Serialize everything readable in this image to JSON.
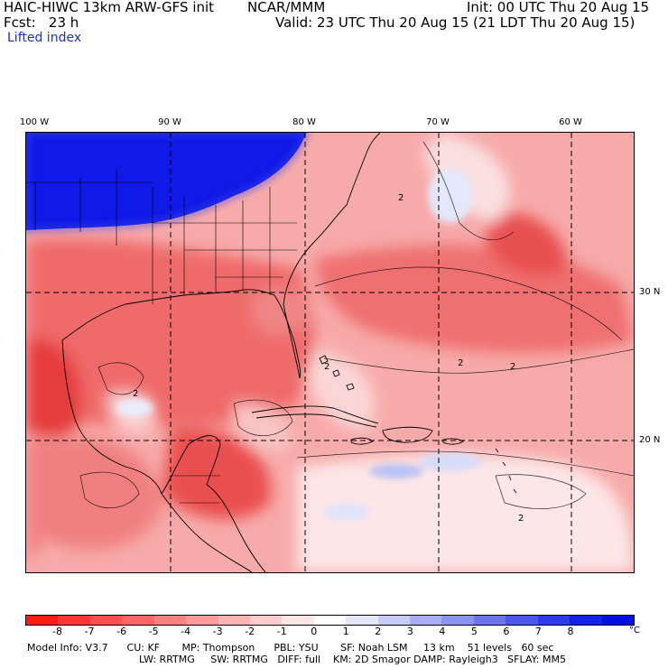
{
  "header": {
    "model": "HAIC-HIWC 13km ARW-GFS init",
    "org": "NCAR/MMM",
    "init": "Init: 00 UTC Thu 20 Aug 15",
    "fcst": "Fcst:   23 h",
    "valid": "Valid: 23 UTC Thu 20 Aug 15 (21 LDT Thu 20 Aug 15)",
    "field": "Lifted index"
  },
  "map": {
    "longitude_labels": [
      "100 W",
      "90 W",
      "80 W",
      "70 W",
      "60 W"
    ],
    "latitude_labels": [
      "30 N",
      "20 N"
    ],
    "contour_labels": [
      "2",
      "2",
      "2",
      "2",
      "2",
      "2"
    ],
    "colors": {
      "deep_blue": "#0a14e6",
      "light_blue": "#dde3fb",
      "pale": "#fbe4e4",
      "light_red": "#f7b0b0",
      "mid_red": "#f27474",
      "strong_red": "#ea4a4a"
    }
  },
  "colorbar": {
    "colors": [
      "#ff1a1a",
      "#ff3434",
      "#ff4e4e",
      "#ff6767",
      "#ff8181",
      "#ff9b9b",
      "#ffb4b4",
      "#ffcdcd",
      "#ffe6e6",
      "#ffffff",
      "#e4e6fd",
      "#c8ccfa",
      "#a9aef7",
      "#8b92f3",
      "#6c74ef",
      "#4e57ec",
      "#2f3aea",
      "#1421e8",
      "#0010e0"
    ],
    "tick_labels": [
      "-8",
      "-7",
      "-6",
      "-5",
      "-4",
      "-3",
      "-2",
      "-1",
      "0",
      "1",
      "2",
      "3",
      "4",
      "5",
      "6",
      "7",
      "8"
    ],
    "unit": "°C"
  },
  "footer": {
    "line1": "Model Info: V3.7      CU: KF       MP: Thompson      PBL: YSU       SF: Noah LSM     13 km    51 levels   60 sec",
    "line2": "LW: RRTMG     SW: RRTMG   DIFF: full    KM: 2D Smagor DAMP: Rayleigh3   SFLAY: MM5"
  }
}
